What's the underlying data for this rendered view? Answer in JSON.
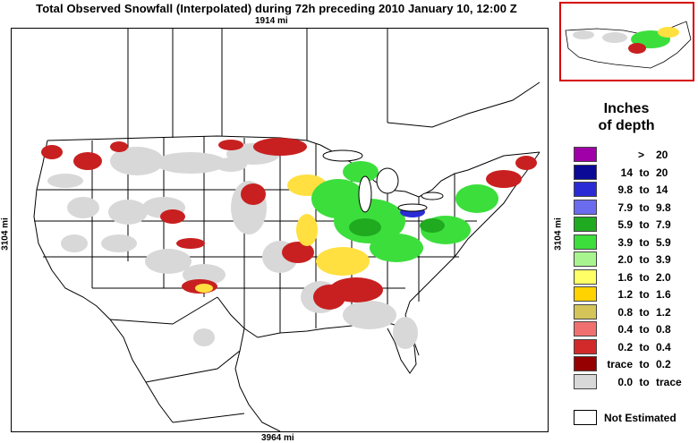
{
  "title": "Total Observed Snowfall (Interpolated) during 72h preceding 2010 January 10, 12:00 Z",
  "distances": {
    "top": "1914 mi",
    "bottom": "3964 mi",
    "left": "3104 mi",
    "right": "3104 mi"
  },
  "legend": {
    "title_line1": "Inches",
    "title_line2": "of depth",
    "items": [
      {
        "low": ">",
        "to": "",
        "high": "20",
        "color": "#a000a8"
      },
      {
        "low": "14",
        "to": "to",
        "high": "20",
        "color": "#0a0a96"
      },
      {
        "low": "9.8",
        "to": "to",
        "high": "14",
        "color": "#2b2bd6"
      },
      {
        "low": "7.9",
        "to": "to",
        "high": "9.8",
        "color": "#6b6bee"
      },
      {
        "low": "5.9",
        "to": "to",
        "high": "7.9",
        "color": "#20aa20"
      },
      {
        "low": "3.9",
        "to": "to",
        "high": "5.9",
        "color": "#3cde3c"
      },
      {
        "low": "2.0",
        "to": "to",
        "high": "3.9",
        "color": "#a8f590"
      },
      {
        "low": "1.6",
        "to": "to",
        "high": "2.0",
        "color": "#ffff66"
      },
      {
        "low": "1.2",
        "to": "to",
        "high": "1.6",
        "color": "#ffd200"
      },
      {
        "low": "0.8",
        "to": "to",
        "high": "1.2",
        "color": "#d4c45a"
      },
      {
        "low": "0.4",
        "to": "to",
        "high": "0.8",
        "color": "#f07070"
      },
      {
        "low": "0.2",
        "to": "to",
        "high": "0.4",
        "color": "#d22a2a"
      },
      {
        "low": "trace",
        "to": "to",
        "high": "0.2",
        "color": "#960000"
      },
      {
        "low": "0.0",
        "to": "to",
        "high": "trace",
        "color": "#d8d8d8"
      }
    ],
    "not_estimated": "Not Estimated"
  }
}
